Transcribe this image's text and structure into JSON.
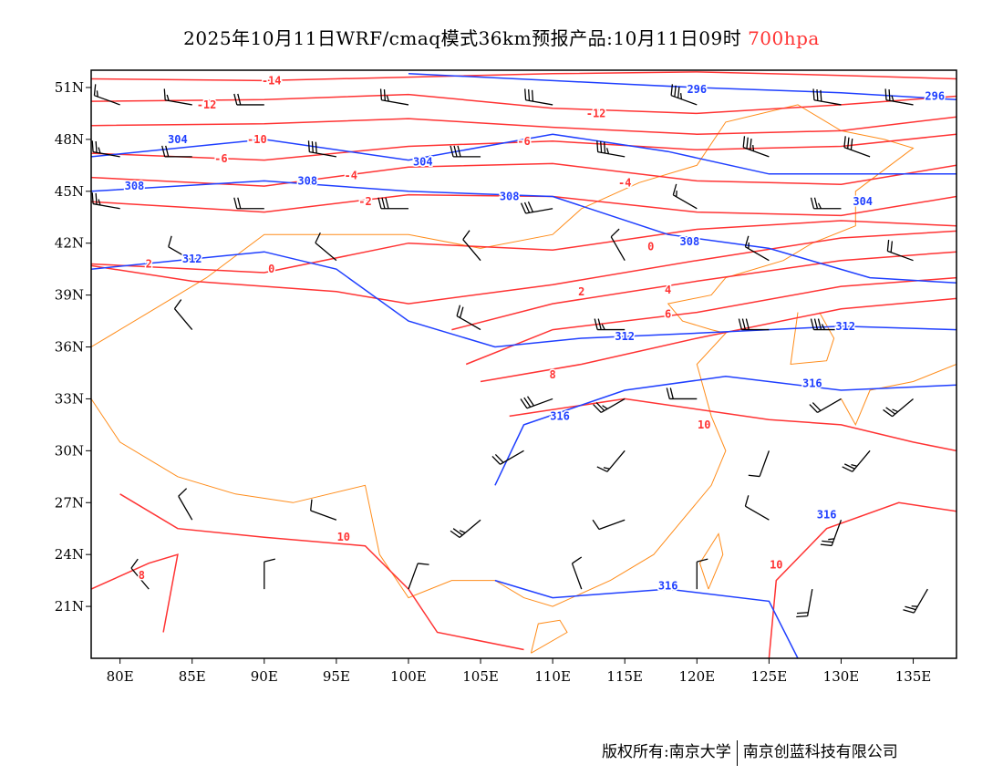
{
  "title": {
    "main": "2025年10月11日WRF/cmaq模式36km预报产品:10月11日09时",
    "level": "700hpa"
  },
  "footer": {
    "copyright": "版权所有:南京大学",
    "company": "南京创蓝科技有限公司"
  },
  "colors": {
    "temperature": "#ff3333",
    "height": "#1f3fff",
    "boundary": "#ff8c1a",
    "wind": "#000000"
  },
  "axes": {
    "lon_range": [
      78,
      138
    ],
    "lat_range": [
      18,
      52
    ],
    "lon_ticks": [
      {
        "v": 80,
        "label": "80E"
      },
      {
        "v": 85,
        "label": "85E"
      },
      {
        "v": 90,
        "label": "90E"
      },
      {
        "v": 95,
        "label": "95E"
      },
      {
        "v": 100,
        "label": "100E"
      },
      {
        "v": 105,
        "label": "105E"
      },
      {
        "v": 110,
        "label": "110E"
      },
      {
        "v": 115,
        "label": "115E"
      },
      {
        "v": 120,
        "label": "120E"
      },
      {
        "v": 125,
        "label": "125E"
      },
      {
        "v": 130,
        "label": "130E"
      },
      {
        "v": 135,
        "label": "135E"
      }
    ],
    "lat_ticks": [
      {
        "v": 51,
        "label": "51N"
      },
      {
        "v": 48,
        "label": "48N"
      },
      {
        "v": 45,
        "label": "45N"
      },
      {
        "v": 42,
        "label": "42N"
      },
      {
        "v": 39,
        "label": "39N"
      },
      {
        "v": 36,
        "label": "36N"
      },
      {
        "v": 33,
        "label": "33N"
      },
      {
        "v": 30,
        "label": "30N"
      },
      {
        "v": 27,
        "label": "27N"
      },
      {
        "v": 24,
        "label": "24N"
      },
      {
        "v": 21,
        "label": "21N"
      }
    ]
  },
  "temperature_contours": [
    {
      "value": -14,
      "pts": [
        [
          78,
          51.5
        ],
        [
          90,
          51.4
        ],
        [
          100,
          51.6
        ],
        [
          110,
          51.8
        ],
        [
          120,
          51.9
        ],
        [
          130,
          51.7
        ],
        [
          138,
          51.5
        ]
      ]
    },
    {
      "value": -12,
      "pts": [
        [
          78,
          50.2
        ],
        [
          90,
          50.3
        ],
        [
          100,
          50.6
        ],
        [
          110,
          49.8
        ],
        [
          120,
          49.5
        ],
        [
          130,
          50.0
        ],
        [
          138,
          50.5
        ]
      ]
    },
    {
      "value": -10,
      "pts": [
        [
          78,
          48.8
        ],
        [
          90,
          48.9
        ],
        [
          100,
          49.2
        ],
        [
          110,
          48.7
        ],
        [
          120,
          48.3
        ],
        [
          130,
          48.5
        ],
        [
          138,
          49.3
        ]
      ]
    },
    {
      "value": -6,
      "pts": [
        [
          78,
          47.2
        ],
        [
          90,
          46.8
        ],
        [
          100,
          47.6
        ],
        [
          110,
          47.9
        ],
        [
          120,
          47.4
        ],
        [
          130,
          47.6
        ],
        [
          138,
          48.3
        ]
      ]
    },
    {
      "value": -4,
      "pts": [
        [
          78,
          45.8
        ],
        [
          90,
          45.3
        ],
        [
          100,
          46.4
        ],
        [
          110,
          46.6
        ],
        [
          120,
          45.6
        ],
        [
          130,
          45.4
        ],
        [
          138,
          46.5
        ]
      ]
    },
    {
      "value": -2,
      "pts": [
        [
          78,
          44.4
        ],
        [
          90,
          43.8
        ],
        [
          100,
          44.8
        ],
        [
          110,
          44.7
        ],
        [
          120,
          43.8
        ],
        [
          130,
          43.6
        ],
        [
          138,
          44.7
        ]
      ]
    },
    {
      "value": 0,
      "pts": [
        [
          78,
          40.8
        ],
        [
          90,
          40.3
        ],
        [
          100,
          42.0
        ],
        [
          110,
          41.6
        ],
        [
          120,
          42.8
        ],
        [
          130,
          43.3
        ],
        [
          138,
          43.0
        ]
      ]
    },
    {
      "value": 2,
      "pts": [
        [
          78,
          40.7
        ],
        [
          85,
          39.8
        ],
        [
          95,
          39.2
        ],
        [
          100,
          38.5
        ],
        [
          110,
          39.6
        ],
        [
          120,
          41.0
        ],
        [
          130,
          42.3
        ],
        [
          138,
          42.7
        ]
      ]
    },
    {
      "value": 4,
      "pts": [
        [
          103,
          37.0
        ],
        [
          110,
          38.5
        ],
        [
          120,
          39.8
        ],
        [
          130,
          41.0
        ],
        [
          138,
          41.5
        ]
      ]
    },
    {
      "value": 6,
      "pts": [
        [
          104,
          35.0
        ],
        [
          110,
          37.0
        ],
        [
          120,
          38.0
        ],
        [
          130,
          39.5
        ],
        [
          138,
          40.0
        ]
      ]
    },
    {
      "value": 8,
      "pts": [
        [
          105,
          34.0
        ],
        [
          112,
          35.0
        ],
        [
          120,
          36.5
        ],
        [
          130,
          38.2
        ],
        [
          138,
          38.8
        ]
      ]
    },
    {
      "value": 10,
      "pts": [
        [
          107,
          32.0
        ],
        [
          115,
          33.0
        ],
        [
          125,
          31.8
        ],
        [
          130,
          31.5
        ],
        [
          135,
          30.5
        ],
        [
          138,
          30.0
        ]
      ]
    },
    {
      "value": 10,
      "pts": [
        [
          80,
          27.5
        ],
        [
          84,
          25.5
        ],
        [
          90,
          25.0
        ],
        [
          97,
          24.5
        ],
        [
          100,
          22.0
        ],
        [
          102,
          19.5
        ],
        [
          108,
          18.5
        ]
      ]
    },
    {
      "value": 8,
      "pts": [
        [
          78,
          22.0
        ],
        [
          82,
          23.5
        ],
        [
          84,
          24.0
        ],
        [
          83,
          19.5
        ]
      ]
    },
    {
      "value": 10,
      "pts": [
        [
          125,
          18.0
        ],
        [
          125.5,
          22.5
        ],
        [
          129,
          25.5
        ],
        [
          134,
          27.0
        ],
        [
          138,
          26.5
        ]
      ]
    }
  ],
  "temperature_labels": [
    {
      "text": "-14",
      "lon": 90.5,
      "lat": 51.4
    },
    {
      "text": "-12",
      "lon": 86,
      "lat": 50.0
    },
    {
      "text": "-10",
      "lon": 89.5,
      "lat": 48.0
    },
    {
      "text": "-6",
      "lon": 87,
      "lat": 46.9
    },
    {
      "text": "-4",
      "lon": 96,
      "lat": 45.9
    },
    {
      "text": "-2",
      "lon": 97,
      "lat": 44.4
    },
    {
      "text": "0",
      "lon": 90.5,
      "lat": 40.5
    },
    {
      "text": "2",
      "lon": 82,
      "lat": 40.8
    },
    {
      "text": "4",
      "lon": 118,
      "lat": 39.3
    },
    {
      "text": "6",
      "lon": 118,
      "lat": 37.9
    },
    {
      "text": "8",
      "lon": 110,
      "lat": 34.4
    },
    {
      "text": "10",
      "lon": 120.5,
      "lat": 31.5
    },
    {
      "text": "10",
      "lon": 95.5,
      "lat": 25.0
    },
    {
      "text": "8",
      "lon": 81.5,
      "lat": 22.8
    },
    {
      "text": "10",
      "lon": 125.5,
      "lat": 23.4
    },
    {
      "text": "-6",
      "lon": 108,
      "lat": 47.9
    },
    {
      "text": "-12",
      "lon": 113,
      "lat": 49.5
    },
    {
      "text": "-4",
      "lon": 115,
      "lat": 45.5
    },
    {
      "text": "0",
      "lon": 116.8,
      "lat": 41.8
    },
    {
      "text": "2",
      "lon": 112,
      "lat": 39.2
    }
  ],
  "height_contours": [
    {
      "value": 296,
      "pts": [
        [
          100,
          51.8
        ],
        [
          110,
          51.4
        ],
        [
          115,
          51.2
        ],
        [
          120,
          51.0
        ],
        [
          130,
          50.7
        ],
        [
          138,
          50.3
        ]
      ]
    },
    {
      "value": 304,
      "pts": [
        [
          78,
          47.0
        ],
        [
          90,
          48.0
        ],
        [
          100,
          46.8
        ],
        [
          110,
          48.3
        ],
        [
          118,
          47.3
        ],
        [
          125,
          46.0
        ],
        [
          138,
          46.0
        ]
      ]
    },
    {
      "value": 308,
      "pts": [
        [
          78,
          45.0
        ],
        [
          90,
          45.6
        ],
        [
          100,
          45.0
        ],
        [
          110,
          44.7
        ],
        [
          118,
          42.5
        ],
        [
          125,
          41.7
        ],
        [
          132,
          40.0
        ],
        [
          138,
          39.7
        ]
      ]
    },
    {
      "value": 312,
      "pts": [
        [
          78,
          40.5
        ],
        [
          90,
          41.5
        ],
        [
          95,
          40.5
        ],
        [
          100,
          37.5
        ],
        [
          106,
          36.0
        ],
        [
          112,
          36.5
        ],
        [
          120,
          36.8
        ],
        [
          130,
          37.2
        ],
        [
          138,
          37.0
        ]
      ]
    },
    {
      "value": 316,
      "pts": [
        [
          106,
          28.0
        ],
        [
          108,
          31.5
        ],
        [
          115,
          33.5
        ],
        [
          122,
          34.3
        ],
        [
          130,
          33.5
        ],
        [
          138,
          33.8
        ]
      ]
    },
    {
      "value": 316,
      "pts": [
        [
          106,
          22.5
        ],
        [
          110,
          21.5
        ],
        [
          118,
          22.0
        ],
        [
          125,
          21.3
        ],
        [
          127,
          18.0
        ]
      ]
    }
  ],
  "height_labels": [
    {
      "text": "296",
      "lon": 120,
      "lat": 50.9
    },
    {
      "text": "296",
      "lon": 136.5,
      "lat": 50.5
    },
    {
      "text": "304",
      "lon": 84,
      "lat": 48.0
    },
    {
      "text": "304",
      "lon": 101,
      "lat": 46.7
    },
    {
      "text": "308",
      "lon": 81,
      "lat": 45.3
    },
    {
      "text": "308",
      "lon": 93,
      "lat": 45.6
    },
    {
      "text": "308",
      "lon": 107,
      "lat": 44.7
    },
    {
      "text": "308",
      "lon": 119.5,
      "lat": 42.1
    },
    {
      "text": "312",
      "lon": 85,
      "lat": 41.1
    },
    {
      "text": "312",
      "lon": 115,
      "lat": 36.6
    },
    {
      "text": "312",
      "lon": 130.3,
      "lat": 37.2
    },
    {
      "text": "316",
      "lon": 110.5,
      "lat": 32.0
    },
    {
      "text": "316",
      "lon": 128,
      "lat": 33.9
    },
    {
      "text": "316",
      "lon": 129,
      "lat": 26.3
    },
    {
      "text": "316",
      "lon": 118,
      "lat": 22.2
    },
    {
      "text": "304",
      "lon": 131.5,
      "lat": 44.4
    }
  ],
  "wind_barbs": [
    [
      80,
      50,
      290,
      15
    ],
    [
      85,
      50,
      280,
      15
    ],
    [
      90,
      50,
      270,
      20
    ],
    [
      100,
      50,
      280,
      25
    ],
    [
      110,
      50,
      280,
      30
    ],
    [
      120,
      50,
      290,
      35
    ],
    [
      130,
      50,
      280,
      30
    ],
    [
      135,
      50,
      280,
      25
    ],
    [
      80,
      47,
      280,
      25
    ],
    [
      85,
      47,
      270,
      20
    ],
    [
      95,
      47,
      280,
      30
    ],
    [
      105,
      47,
      270,
      30
    ],
    [
      115,
      47,
      280,
      35
    ],
    [
      125,
      47,
      290,
      35
    ],
    [
      132,
      47,
      290,
      30
    ],
    [
      80,
      44,
      280,
      25
    ],
    [
      90,
      44,
      270,
      20
    ],
    [
      100,
      44,
      270,
      30
    ],
    [
      110,
      44,
      260,
      30
    ],
    [
      120,
      44,
      300,
      15
    ],
    [
      130,
      44,
      270,
      25
    ],
    [
      85,
      41,
      300,
      10
    ],
    [
      95,
      41,
      310,
      10
    ],
    [
      105,
      41,
      320,
      10
    ],
    [
      115,
      41,
      330,
      10
    ],
    [
      125,
      41,
      300,
      15
    ],
    [
      135,
      41,
      290,
      20
    ],
    [
      85,
      37,
      320,
      10
    ],
    [
      105,
      37,
      300,
      20
    ],
    [
      115,
      37,
      270,
      25
    ],
    [
      125,
      37,
      270,
      30
    ],
    [
      130,
      37,
      270,
      35
    ],
    [
      110,
      33,
      250,
      30
    ],
    [
      115,
      33,
      240,
      25
    ],
    [
      120,
      33,
      270,
      20
    ],
    [
      130,
      33,
      240,
      20
    ],
    [
      135,
      33,
      230,
      25
    ],
    [
      108,
      30,
      240,
      20
    ],
    [
      115,
      30,
      220,
      15
    ],
    [
      125,
      30,
      200,
      10
    ],
    [
      132,
      30,
      220,
      25
    ],
    [
      85,
      26,
      330,
      10
    ],
    [
      95,
      26,
      290,
      10
    ],
    [
      105,
      26,
      230,
      25
    ],
    [
      115,
      26,
      250,
      10
    ],
    [
      125,
      26,
      300,
      10
    ],
    [
      130,
      26,
      200,
      25
    ],
    [
      82,
      22,
      320,
      10
    ],
    [
      90,
      22,
      0,
      10
    ],
    [
      100,
      22,
      20,
      10
    ],
    [
      112,
      22,
      340,
      10
    ],
    [
      120,
      22,
      0,
      10
    ],
    [
      128,
      22,
      190,
      20
    ],
    [
      136,
      22,
      210,
      25
    ]
  ],
  "boundaries": [
    [
      [
        78,
        36
      ],
      [
        82,
        38
      ],
      [
        86,
        40
      ],
      [
        90,
        42.5
      ],
      [
        96,
        42.5
      ],
      [
        100,
        42.5
      ],
      [
        105,
        41.7
      ],
      [
        110,
        42.5
      ],
      [
        112,
        44
      ],
      [
        116,
        45.5
      ],
      [
        120,
        46.5
      ],
      [
        122,
        49
      ],
      [
        127,
        50
      ],
      [
        130,
        48.5
      ],
      [
        133,
        48
      ],
      [
        135,
        47.5
      ],
      [
        131,
        45
      ],
      [
        131,
        43
      ],
      [
        128,
        42
      ],
      [
        126,
        41
      ],
      [
        122,
        40
      ],
      [
        121,
        39
      ],
      [
        118,
        38.5
      ],
      [
        119,
        37.5
      ],
      [
        121,
        37
      ],
      [
        122,
        36.8
      ],
      [
        120,
        35
      ],
      [
        121,
        32
      ],
      [
        122,
        30
      ],
      [
        121,
        28
      ],
      [
        119,
        26
      ],
      [
        117,
        24
      ],
      [
        114,
        22.5
      ],
      [
        110,
        21
      ],
      [
        108,
        21.5
      ],
      [
        106,
        22.5
      ],
      [
        103,
        22.5
      ],
      [
        100,
        21.5
      ],
      [
        98,
        24
      ],
      [
        97,
        28
      ],
      [
        92,
        27
      ],
      [
        88,
        27.5
      ],
      [
        84,
        28.5
      ],
      [
        80,
        30.5
      ],
      [
        78,
        33
      ]
    ],
    [
      [
        108.5,
        18.3
      ],
      [
        111,
        19.5
      ],
      [
        110.5,
        20.2
      ],
      [
        109,
        20
      ],
      [
        108.5,
        18.3
      ]
    ],
    [
      [
        120.8,
        22
      ],
      [
        121.8,
        24
      ],
      [
        121.5,
        25.2
      ],
      [
        120.2,
        23.5
      ],
      [
        120.8,
        22
      ]
    ],
    [
      [
        127,
        38
      ],
      [
        126.5,
        35
      ],
      [
        129,
        35.2
      ],
      [
        129.5,
        36.5
      ],
      [
        128.5,
        38
      ]
    ],
    [
      [
        130,
        33
      ],
      [
        131,
        31.5
      ],
      [
        132,
        33.5
      ],
      [
        135,
        34
      ],
      [
        138,
        35
      ],
      [
        138,
        37
      ]
    ]
  ]
}
